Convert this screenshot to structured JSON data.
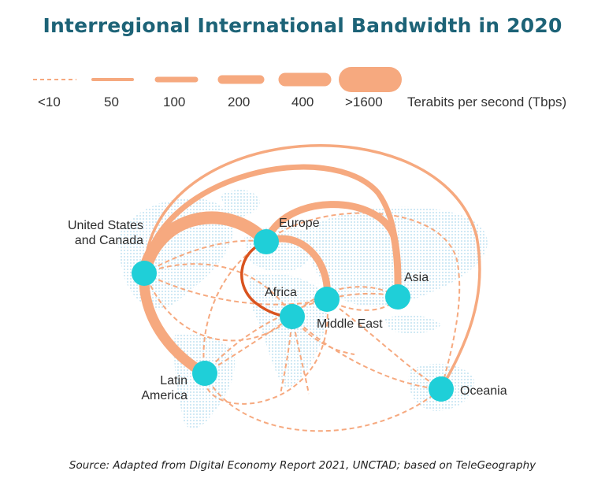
{
  "title": "Interregional International Bandwidth in 2020",
  "legend": {
    "items": [
      "<10",
      "50",
      "100",
      "200",
      "400",
      ">1600"
    ],
    "unit": "Terabits per second (Tbps)"
  },
  "colors": {
    "title": "#1d6377",
    "route": "#f6a97f",
    "route_intra_africa": "#d9531e",
    "node": "#1fcfd8",
    "map_dots": "#b9dff0"
  },
  "regions": {
    "us_canada": "United States\nand Canada",
    "europe": "Europe",
    "africa": "Africa",
    "middle_east": "Middle East",
    "asia": "Asia",
    "latin_america": "Latin\nAmerica",
    "oceania": "Oceania"
  },
  "source": "Source: Adapted from Digital Economy Report 2021, UNCTAD; based on TeleGeography"
}
